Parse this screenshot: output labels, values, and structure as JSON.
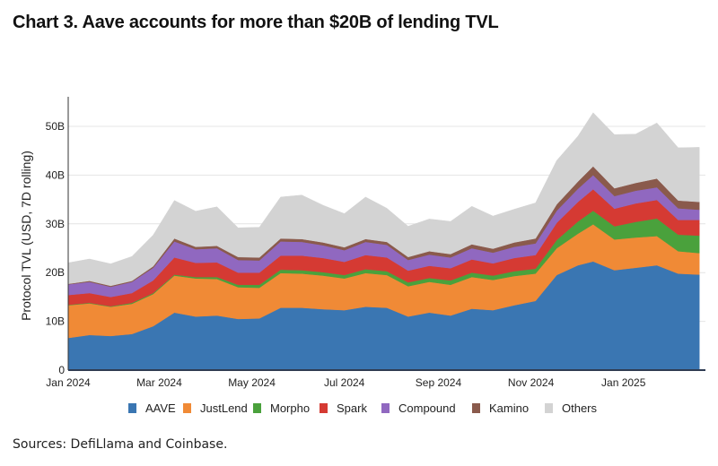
{
  "title": "Chart 3. Aave accounts for more than $20B of lending TVL",
  "sources": "Sources: DefiLlama and Coinbase.",
  "chart_data": {
    "type": "area",
    "stacked": true,
    "title": "Chart 3. Aave accounts for more than $20B of lending TVL",
    "xlabel": "",
    "ylabel": "Protocol TVL (USD, 7D rolling)",
    "ylim": [
      0,
      55
    ],
    "yunit": "B",
    "yticks": [
      0,
      10,
      20,
      30,
      40,
      50
    ],
    "ytick_labels": [
      "0",
      "10B",
      "20B",
      "30B",
      "40B",
      "50B"
    ],
    "xrange_days": [
      0,
      420
    ],
    "xticks_days": [
      0,
      60,
      121,
      182,
      244,
      305,
      366
    ],
    "xtick_labels": [
      "Jan 2024",
      "Mar 2024",
      "May 2024",
      "Jul 2024",
      "Sep 2024",
      "Nov 2024",
      "Jan 2025"
    ],
    "grid": true,
    "legend_position": "bottom",
    "x_days": [
      0,
      14,
      28,
      42,
      56,
      70,
      84,
      98,
      112,
      126,
      140,
      154,
      168,
      182,
      196,
      210,
      224,
      238,
      252,
      266,
      280,
      294,
      308,
      322,
      336,
      346,
      360,
      374,
      388,
      402,
      416
    ],
    "series": [
      {
        "name": "AAVE",
        "color": "#3a76b2",
        "values": [
          6.6,
          7.2,
          7.0,
          7.4,
          9.0,
          11.8,
          11.0,
          11.2,
          10.5,
          10.6,
          12.8,
          12.8,
          12.5,
          12.3,
          13.0,
          12.8,
          11.0,
          11.8,
          11.2,
          12.6,
          12.3,
          13.3,
          14.2,
          19.5,
          21.5,
          22.3,
          20.5,
          21.0,
          21.5,
          19.8,
          19.6
        ]
      },
      {
        "name": "JustLend",
        "color": "#f08a36",
        "values": [
          6.7,
          6.5,
          6.0,
          6.2,
          6.6,
          7.6,
          7.8,
          7.5,
          6.5,
          6.3,
          7.1,
          7.0,
          6.9,
          6.5,
          6.9,
          6.7,
          6.2,
          6.3,
          6.3,
          6.5,
          6.2,
          6.0,
          5.6,
          5.5,
          6.5,
          7.6,
          6.3,
          6.2,
          6.0,
          4.6,
          4.4
        ]
      },
      {
        "name": "Morpho",
        "color": "#4aa13c",
        "values": [
          0.1,
          0.1,
          0.1,
          0.2,
          0.2,
          0.2,
          0.3,
          0.4,
          0.5,
          0.6,
          0.7,
          0.7,
          0.7,
          0.7,
          0.8,
          0.8,
          0.8,
          0.8,
          0.9,
          0.9,
          0.9,
          1.0,
          1.0,
          1.7,
          2.5,
          2.8,
          2.7,
          3.2,
          3.6,
          3.4,
          3.6
        ]
      },
      {
        "name": "Spark",
        "color": "#d53a33",
        "values": [
          2.0,
          2.0,
          1.9,
          2.0,
          2.6,
          3.5,
          2.9,
          3.0,
          2.5,
          2.5,
          2.9,
          3.0,
          2.9,
          2.7,
          2.9,
          2.8,
          2.4,
          2.5,
          2.5,
          2.7,
          2.5,
          2.7,
          2.8,
          3.5,
          4.0,
          4.4,
          3.6,
          3.8,
          3.8,
          3.0,
          3.2
        ]
      },
      {
        "name": "Compound",
        "color": "#9068c0",
        "values": [
          2.2,
          2.3,
          2.1,
          2.3,
          2.6,
          3.3,
          2.8,
          2.9,
          2.6,
          2.5,
          2.9,
          2.8,
          2.6,
          2.4,
          2.7,
          2.6,
          2.2,
          2.3,
          2.2,
          2.3,
          2.2,
          2.3,
          2.4,
          2.5,
          2.7,
          2.9,
          2.6,
          2.6,
          2.6,
          2.4,
          2.1
        ]
      },
      {
        "name": "Kamino",
        "color": "#8a5a4c",
        "values": [
          0.1,
          0.2,
          0.2,
          0.2,
          0.3,
          0.6,
          0.5,
          0.5,
          0.6,
          0.6,
          0.6,
          0.6,
          0.6,
          0.6,
          0.6,
          0.6,
          0.6,
          0.7,
          0.7,
          0.8,
          0.8,
          0.9,
          1.0,
          1.3,
          1.5,
          1.8,
          1.6,
          1.6,
          1.8,
          1.6,
          1.6
        ]
      },
      {
        "name": "Others",
        "color": "#d3d3d3",
        "values": [
          4.3,
          4.5,
          4.5,
          5.0,
          6.4,
          7.8,
          7.3,
          8.0,
          6.0,
          6.2,
          8.5,
          9.0,
          7.6,
          6.9,
          8.6,
          6.9,
          6.3,
          6.6,
          6.7,
          7.8,
          6.7,
          6.8,
          7.3,
          9.0,
          9.3,
          11.0,
          11.0,
          10.0,
          11.4,
          10.8,
          11.2
        ]
      }
    ]
  }
}
